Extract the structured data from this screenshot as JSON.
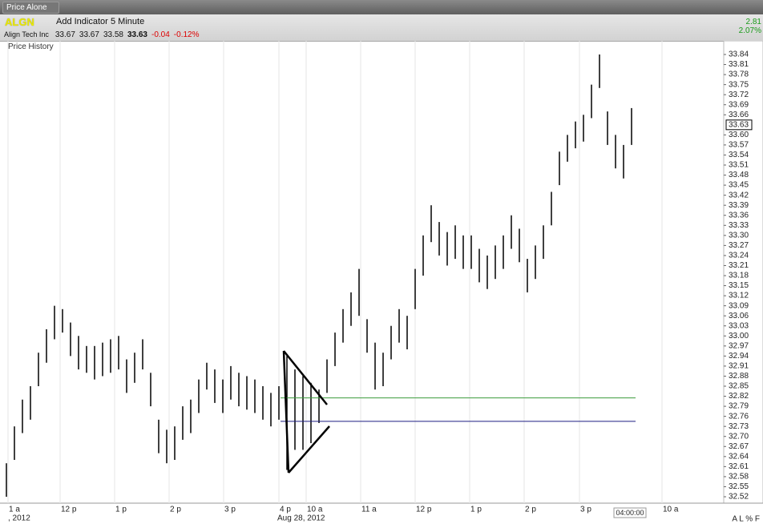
{
  "window": {
    "title": "Price Alone"
  },
  "toolbar": {
    "symbol": "ALGN",
    "add_indicator": "Add Indicator",
    "interval": "5 Minute"
  },
  "quote": {
    "name": "Align Tech Inc",
    "open": "33.67",
    "high": "33.67",
    "low": "33.58",
    "last": "33.63",
    "change": "-0.04",
    "change_pct": "-0.12%"
  },
  "side_change": {
    "change": "2.81",
    "change_pct": "2.07%"
  },
  "panel": {
    "title": "Price History"
  },
  "footer": {
    "time": "04:00:00",
    "buttons": "A L % F"
  },
  "chart_data": {
    "type": "range-bar",
    "color": "#000000",
    "high": [
      32.62,
      32.73,
      32.81,
      32.85,
      32.95,
      33.02,
      33.09,
      33.08,
      33.04,
      33.0,
      32.97,
      32.97,
      32.98,
      32.99,
      33.0,
      32.93,
      32.95,
      32.99,
      32.89,
      32.75,
      32.72,
      32.73,
      32.79,
      32.81,
      32.87,
      32.92,
      32.9,
      32.87,
      32.91,
      32.89,
      32.88,
      32.87,
      32.85,
      32.83,
      32.85,
      32.94,
      32.9,
      32.88,
      32.86,
      32.84,
      32.93,
      33.01,
      33.08,
      33.13,
      33.2,
      33.05,
      32.98,
      32.95,
      33.03,
      33.08,
      33.06,
      33.2,
      33.3,
      33.39,
      33.34,
      33.31,
      33.33,
      33.3,
      33.3,
      33.26,
      33.24,
      33.27,
      33.3,
      33.36,
      33.32,
      33.23,
      33.27,
      33.33,
      33.43,
      33.55,
      33.6,
      33.64,
      33.66,
      33.75,
      33.84,
      33.67,
      33.6,
      33.57,
      33.68
    ],
    "low": [
      32.52,
      32.63,
      32.71,
      32.75,
      32.85,
      32.92,
      32.99,
      33.01,
      32.94,
      32.9,
      32.89,
      32.87,
      32.88,
      32.89,
      32.9,
      32.83,
      32.86,
      32.9,
      32.79,
      32.65,
      32.62,
      32.63,
      32.69,
      32.71,
      32.77,
      32.84,
      32.8,
      32.77,
      32.81,
      32.79,
      32.78,
      32.77,
      32.75,
      32.73,
      32.75,
      32.6,
      32.66,
      32.66,
      32.68,
      32.74,
      32.83,
      32.91,
      32.98,
      33.03,
      33.06,
      32.95,
      32.84,
      32.85,
      32.93,
      32.98,
      32.96,
      33.08,
      33.18,
      33.28,
      33.24,
      33.21,
      33.23,
      33.2,
      33.2,
      33.16,
      33.14,
      33.17,
      33.2,
      33.26,
      33.22,
      33.13,
      33.17,
      33.23,
      33.33,
      33.45,
      33.52,
      33.56,
      33.58,
      33.65,
      33.74,
      33.57,
      33.5,
      33.47,
      33.57
    ],
    "last": 33.63,
    "levels": [
      {
        "value": 32.815,
        "color": "#3c9c3c"
      },
      {
        "value": 32.745,
        "color": "#1c1c80"
      }
    ],
    "ylim": [
      32.52,
      33.84
    ],
    "yticks": [
      33.84,
      33.81,
      33.78,
      33.75,
      33.72,
      33.69,
      33.66,
      {
        "value": 33.6,
        "label": "33.60"
      },
      33.57,
      33.54,
      33.51,
      33.48,
      33.45,
      33.42,
      33.39,
      33.36,
      33.33,
      {
        "value": 33.3,
        "label": "33.30"
      },
      33.27,
      33.24,
      33.21,
      33.18,
      33.15,
      33.12,
      33.09,
      33.06,
      33.03,
      {
        "value": 33.0,
        "label": "33.00"
      },
      32.97,
      32.94,
      32.91,
      32.88,
      32.85,
      32.82,
      32.79,
      32.76,
      32.73,
      {
        "value": 32.7,
        "label": "32.70"
      },
      32.67,
      32.64,
      32.61,
      32.58,
      32.55,
      32.52
    ],
    "xlim": [
      -0.8,
      89.2
    ],
    "xticks": [
      {
        "value": 0.2,
        "label": "1 a"
      },
      {
        "value": 6.7,
        "label": "12 p"
      },
      {
        "value": 13.5,
        "label": "1 p"
      },
      {
        "value": 20.3,
        "label": "2 p"
      },
      {
        "value": 27.1,
        "label": "3 p"
      },
      {
        "value": 34,
        "label": "4 p"
      },
      {
        "value": 37.4,
        "label": "10 a"
      },
      {
        "value": 44.2,
        "label": "11 a"
      },
      {
        "value": 51,
        "label": "12 p"
      },
      {
        "value": 57.8,
        "label": "1 p"
      },
      {
        "value": 64.6,
        "label": "2 p"
      },
      {
        "value": 71.5,
        "label": "3 p"
      },
      {
        "value": 81.8,
        "label": "10 a"
      }
    ],
    "dates": [
      {
        "value": 0.2,
        "label": ", 2012"
      },
      {
        "value": 33.8,
        "label": "Aug 28, 2012"
      }
    ],
    "grid": "x"
  }
}
